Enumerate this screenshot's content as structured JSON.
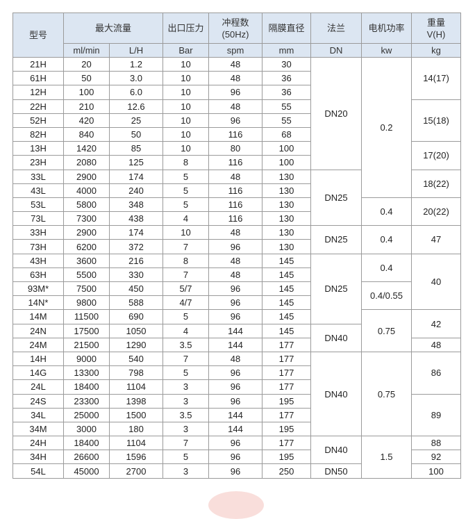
{
  "header": {
    "model": "型号",
    "max_flow": "最大流量",
    "outlet_pressure": "出口压力",
    "strokes": "冲程数\n(50Hz)",
    "diaphragm": "隔膜直径",
    "flange": "法兰",
    "motor_power": "电机功率",
    "weight": "重量\nV(H)",
    "units": [
      "ml/min",
      "L/H",
      "Bar",
      "spm",
      "mm",
      "DN",
      "kw",
      "kg"
    ]
  },
  "rows": [
    [
      "21H",
      "20",
      "1.2",
      "10",
      "48",
      "30"
    ],
    [
      "61H",
      "50",
      "3.0",
      "10",
      "48",
      "36"
    ],
    [
      "12H",
      "100",
      "6.0",
      "10",
      "96",
      "36"
    ],
    [
      "22H",
      "210",
      "12.6",
      "10",
      "48",
      "55"
    ],
    [
      "52H",
      "420",
      "25",
      "10",
      "96",
      "55"
    ],
    [
      "82H",
      "840",
      "50",
      "10",
      "116",
      "68"
    ],
    [
      "13H",
      "1420",
      "85",
      "10",
      "80",
      "100"
    ],
    [
      "23H",
      "2080",
      "125",
      "8",
      "116",
      "100"
    ],
    [
      "33L",
      "2900",
      "174",
      "5",
      "48",
      "130"
    ],
    [
      "43L",
      "4000",
      "240",
      "5",
      "116",
      "130"
    ],
    [
      "53L",
      "5800",
      "348",
      "5",
      "116",
      "130"
    ],
    [
      "73L",
      "7300",
      "438",
      "4",
      "116",
      "130"
    ],
    [
      "33H",
      "2900",
      "174",
      "10",
      "48",
      "130"
    ],
    [
      "73H",
      "6200",
      "372",
      "7",
      "96",
      "130"
    ],
    [
      "43H",
      "3600",
      "216",
      "8",
      "48",
      "145"
    ],
    [
      "63H",
      "5500",
      "330",
      "7",
      "48",
      "145"
    ],
    [
      "93M*",
      "7500",
      "450",
      "5/7",
      "96",
      "145"
    ],
    [
      "14N*",
      "9800",
      "588",
      "4/7",
      "96",
      "145"
    ],
    [
      "14M",
      "11500",
      "690",
      "5",
      "96",
      "145"
    ],
    [
      "24N",
      "17500",
      "1050",
      "4",
      "144",
      "145"
    ],
    [
      "24M",
      "21500",
      "1290",
      "3.5",
      "144",
      "177"
    ],
    [
      "14H",
      "9000",
      "540",
      "7",
      "48",
      "177"
    ],
    [
      "14G",
      "13300",
      "798",
      "5",
      "96",
      "177"
    ],
    [
      "24L",
      "18400",
      "1104",
      "3",
      "96",
      "177"
    ],
    [
      "24S",
      "23300",
      "1398",
      "3",
      "96",
      "195"
    ],
    [
      "34L",
      "25000",
      "1500",
      "3.5",
      "144",
      "177"
    ],
    [
      "34M",
      "3000",
      "180",
      "3",
      "144",
      "195"
    ],
    [
      "24H",
      "18400",
      "1104",
      "7",
      "96",
      "177"
    ],
    [
      "34H",
      "26600",
      "1596",
      "5",
      "96",
      "195"
    ],
    [
      "54L",
      "45000",
      "2700",
      "3",
      "96",
      "250"
    ]
  ],
  "flange_groups": [
    {
      "value": "DN20",
      "rows": 8
    },
    {
      "value": "DN25",
      "rows": 4
    },
    {
      "value": "DN25",
      "rows": 2
    },
    {
      "value": "DN25",
      "rows": 5
    },
    {
      "value": "DN40",
      "rows": 2
    },
    {
      "value": "DN40",
      "rows": 6
    },
    {
      "value": "DN40",
      "rows": 2
    },
    {
      "value": "DN50",
      "rows": 1
    }
  ],
  "power_groups": [
    {
      "value": "0.2",
      "rows": 10
    },
    {
      "value": "0.4",
      "rows": 2
    },
    {
      "value": "0.4",
      "rows": 2
    },
    {
      "value": "0.4",
      "rows": 2
    },
    {
      "value": "0.4/0.55",
      "rows": 2
    },
    {
      "value": "0.75",
      "rows": 3
    },
    {
      "value": "0.75",
      "rows": 6
    },
    {
      "value": "1.5",
      "rows": 3
    }
  ],
  "weight_groups": [
    {
      "value": "14(17)",
      "rows": 3
    },
    {
      "value": "15(18)",
      "rows": 3
    },
    {
      "value": "17(20)",
      "rows": 2
    },
    {
      "value": "18(22)",
      "rows": 2
    },
    {
      "value": "20(22)",
      "rows": 2
    },
    {
      "value": "47",
      "rows": 2
    },
    {
      "value": "40",
      "rows": 4
    },
    {
      "value": "42",
      "rows": 2
    },
    {
      "value": "48",
      "rows": 1
    },
    {
      "value": "86",
      "rows": 3
    },
    {
      "value": "89",
      "rows": 3
    },
    {
      "value": "88",
      "rows": 1
    },
    {
      "value": "92",
      "rows": 1
    },
    {
      "value": "100",
      "rows": 1
    }
  ],
  "colors": {
    "header_bg": "#dce6f2",
    "border": "#9a9a9a"
  }
}
